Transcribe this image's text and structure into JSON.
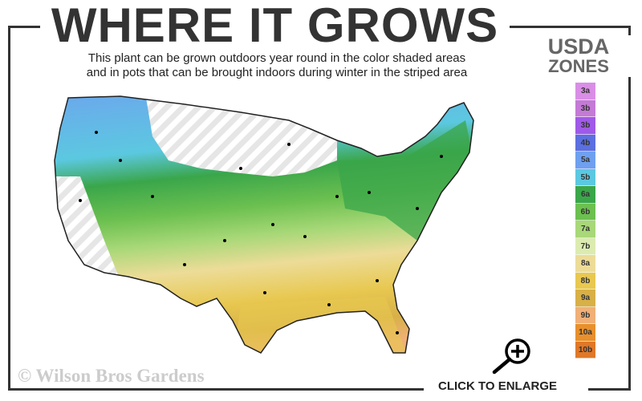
{
  "title": "WHERE IT GROWS",
  "subtitle_line1": "This plant can be grown outdoors year round in the color shaded areas",
  "subtitle_line2": "and in pots that can be brought indoors during winter in the striped area",
  "legend": {
    "title_line1": "USDA",
    "title_line2": "ZONES",
    "zones": [
      {
        "label": "3a",
        "color": "#d98ee6"
      },
      {
        "label": "3b",
        "color": "#c47ad6"
      },
      {
        "label": "3b",
        "color": "#a05ae8"
      },
      {
        "label": "4b",
        "color": "#5b6fe0"
      },
      {
        "label": "5a",
        "color": "#6fa0f0"
      },
      {
        "label": "5b",
        "color": "#5cc8e0"
      },
      {
        "label": "6a",
        "color": "#3aa64a"
      },
      {
        "label": "6b",
        "color": "#6cc050"
      },
      {
        "label": "7a",
        "color": "#a8d878"
      },
      {
        "label": "7b",
        "color": "#dcecb0"
      },
      {
        "label": "8a",
        "color": "#ecdc98"
      },
      {
        "label": "8b",
        "color": "#e8c850"
      },
      {
        "label": "9a",
        "color": "#d8b048"
      },
      {
        "label": "9b",
        "color": "#f0b078"
      },
      {
        "label": "10a",
        "color": "#e8902c"
      },
      {
        "label": "10b",
        "color": "#e07828"
      }
    ]
  },
  "copyright": "© Wilson Bros Gardens",
  "enlarge_label": "CLICK TO ENLARGE",
  "icons": {
    "enlarge": "magnifier-plus-icon"
  }
}
